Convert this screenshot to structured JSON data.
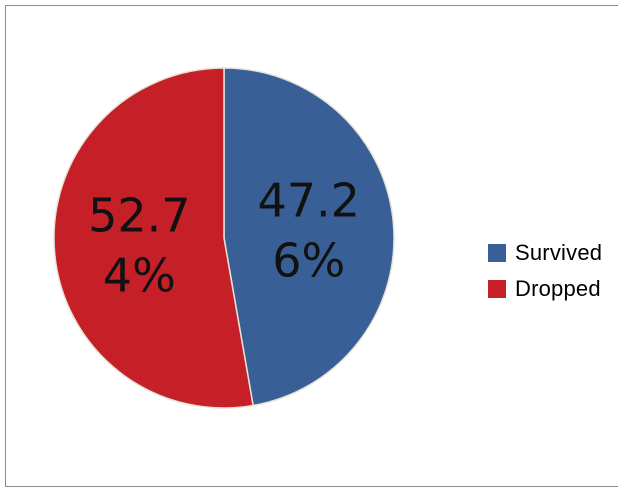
{
  "chart_data": {
    "type": "pie",
    "title": "",
    "slices": [
      {
        "name": "Survived",
        "value": 47.26,
        "label_lines": [
          "47.2",
          "6%"
        ],
        "color": "#386096"
      },
      {
        "name": "Dropped",
        "value": 52.74,
        "label_lines": [
          "52.7",
          "4%"
        ],
        "color": "#C52028"
      }
    ],
    "legend": {
      "placement": "right",
      "items": [
        {
          "label": "Survived",
          "color": "#386096"
        },
        {
          "label": "Dropped",
          "color": "#C52028"
        }
      ]
    },
    "start_angle": "12 o'clock",
    "direction": "clockwise"
  }
}
